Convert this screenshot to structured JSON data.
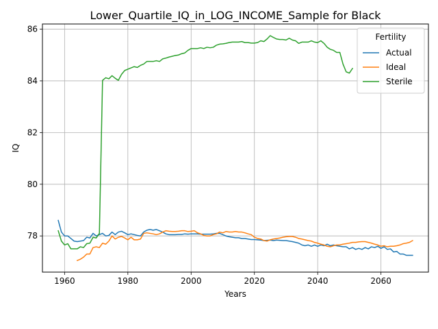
{
  "chart_data": {
    "type": "line",
    "title": "Lower_Quartile_IQ_in_LOG_INCOME_Sample for Black",
    "xlabel": "Years",
    "ylabel": "IQ",
    "xlim": [
      1953,
      2075
    ],
    "ylim": [
      76.6,
      86.2
    ],
    "xticks": [
      1960,
      1980,
      2000,
      2020,
      2040,
      2060
    ],
    "yticks": [
      78,
      80,
      82,
      84,
      86
    ],
    "grid": true,
    "legend": {
      "title": "Fertility",
      "placement": "top-right"
    },
    "series": [
      {
        "name": "Actual",
        "color": "#1f77b4",
        "points": [
          [
            1958,
            78.6
          ],
          [
            1959,
            78.15
          ],
          [
            1960,
            78.0
          ],
          [
            1961,
            78.0
          ],
          [
            1962,
            77.9
          ],
          [
            1963,
            77.8
          ],
          [
            1964,
            77.78
          ],
          [
            1965,
            77.8
          ],
          [
            1966,
            77.82
          ],
          [
            1967,
            77.95
          ],
          [
            1968,
            77.92
          ],
          [
            1969,
            78.1
          ],
          [
            1970,
            78.0
          ],
          [
            1971,
            78.05
          ],
          [
            1972,
            78.1
          ],
          [
            1973,
            78.0
          ],
          [
            1974,
            78.02
          ],
          [
            1975,
            78.15
          ],
          [
            1976,
            78.05
          ],
          [
            1977,
            78.15
          ],
          [
            1978,
            78.18
          ],
          [
            1979,
            78.12
          ],
          [
            1980,
            78.05
          ],
          [
            1981,
            78.08
          ],
          [
            1982,
            78.05
          ],
          [
            1983,
            78.02
          ],
          [
            1984,
            78.0
          ],
          [
            1985,
            78.15
          ],
          [
            1986,
            78.22
          ],
          [
            1987,
            78.25
          ],
          [
            1988,
            78.22
          ],
          [
            1989,
            78.25
          ],
          [
            1990,
            78.2
          ],
          [
            1991,
            78.15
          ],
          [
            1992,
            78.08
          ],
          [
            1993,
            78.05
          ],
          [
            1994,
            78.05
          ],
          [
            1995,
            78.05
          ],
          [
            1996,
            78.06
          ],
          [
            1997,
            78.06
          ],
          [
            1998,
            78.08
          ],
          [
            1999,
            78.07
          ],
          [
            2000,
            78.08
          ],
          [
            2001,
            78.08
          ],
          [
            2002,
            78.08
          ],
          [
            2003,
            78.07
          ],
          [
            2004,
            78.07
          ],
          [
            2005,
            78.07
          ],
          [
            2006,
            78.07
          ],
          [
            2007,
            78.08
          ],
          [
            2008,
            78.1
          ],
          [
            2009,
            78.1
          ],
          [
            2010,
            78.05
          ],
          [
            2011,
            78.0
          ],
          [
            2012,
            77.97
          ],
          [
            2013,
            77.95
          ],
          [
            2014,
            77.93
          ],
          [
            2015,
            77.93
          ],
          [
            2016,
            77.9
          ],
          [
            2017,
            77.9
          ],
          [
            2018,
            77.88
          ],
          [
            2019,
            77.86
          ],
          [
            2020,
            77.86
          ],
          [
            2021,
            77.85
          ],
          [
            2022,
            77.84
          ],
          [
            2023,
            77.82
          ],
          [
            2024,
            77.83
          ],
          [
            2025,
            77.84
          ],
          [
            2026,
            77.82
          ],
          [
            2027,
            77.84
          ],
          [
            2028,
            77.83
          ],
          [
            2029,
            77.82
          ],
          [
            2030,
            77.82
          ],
          [
            2031,
            77.8
          ],
          [
            2032,
            77.78
          ],
          [
            2033,
            77.75
          ],
          [
            2034,
            77.72
          ],
          [
            2035,
            77.65
          ],
          [
            2036,
            77.62
          ],
          [
            2037,
            77.65
          ],
          [
            2038,
            77.6
          ],
          [
            2039,
            77.65
          ],
          [
            2040,
            77.6
          ],
          [
            2041,
            77.65
          ],
          [
            2042,
            77.62
          ],
          [
            2043,
            77.68
          ],
          [
            2044,
            77.62
          ],
          [
            2045,
            77.65
          ],
          [
            2046,
            77.62
          ],
          [
            2047,
            77.6
          ],
          [
            2048,
            77.58
          ],
          [
            2049,
            77.58
          ],
          [
            2050,
            77.5
          ],
          [
            2051,
            77.55
          ],
          [
            2052,
            77.48
          ],
          [
            2053,
            77.52
          ],
          [
            2054,
            77.48
          ],
          [
            2055,
            77.55
          ],
          [
            2056,
            77.5
          ],
          [
            2057,
            77.58
          ],
          [
            2058,
            77.55
          ],
          [
            2059,
            77.6
          ],
          [
            2060,
            77.52
          ],
          [
            2061,
            77.58
          ],
          [
            2062,
            77.48
          ],
          [
            2063,
            77.5
          ],
          [
            2064,
            77.38
          ],
          [
            2065,
            77.4
          ],
          [
            2066,
            77.3
          ],
          [
            2067,
            77.3
          ],
          [
            2068,
            77.25
          ],
          [
            2069,
            77.25
          ],
          [
            2070,
            77.25
          ]
        ]
      },
      {
        "name": "Ideal",
        "color": "#ff7f0e",
        "points": [
          [
            1964,
            77.05
          ],
          [
            1965,
            77.1
          ],
          [
            1966,
            77.18
          ],
          [
            1967,
            77.3
          ],
          [
            1968,
            77.3
          ],
          [
            1969,
            77.55
          ],
          [
            1970,
            77.58
          ],
          [
            1971,
            77.55
          ],
          [
            1972,
            77.72
          ],
          [
            1973,
            77.68
          ],
          [
            1974,
            77.8
          ],
          [
            1975,
            78.0
          ],
          [
            1976,
            77.88
          ],
          [
            1977,
            77.95
          ],
          [
            1978,
            77.98
          ],
          [
            1979,
            77.92
          ],
          [
            1980,
            77.85
          ],
          [
            1981,
            77.95
          ],
          [
            1982,
            77.85
          ],
          [
            1983,
            77.85
          ],
          [
            1984,
            77.88
          ],
          [
            1985,
            78.1
          ],
          [
            1986,
            78.12
          ],
          [
            1987,
            78.1
          ],
          [
            1988,
            78.08
          ],
          [
            1989,
            78.05
          ],
          [
            1990,
            78.08
          ],
          [
            1991,
            78.15
          ],
          [
            1992,
            78.2
          ],
          [
            1993,
            78.18
          ],
          [
            1994,
            78.17
          ],
          [
            1995,
            78.17
          ],
          [
            1996,
            78.18
          ],
          [
            1997,
            78.2
          ],
          [
            1998,
            78.2
          ],
          [
            1999,
            78.17
          ],
          [
            2000,
            78.18
          ],
          [
            2001,
            78.2
          ],
          [
            2002,
            78.12
          ],
          [
            2003,
            78.08
          ],
          [
            2004,
            78.02
          ],
          [
            2005,
            78.0
          ],
          [
            2006,
            78.0
          ],
          [
            2007,
            78.05
          ],
          [
            2008,
            78.08
          ],
          [
            2009,
            78.15
          ],
          [
            2010,
            78.12
          ],
          [
            2011,
            78.17
          ],
          [
            2012,
            78.15
          ],
          [
            2013,
            78.15
          ],
          [
            2014,
            78.17
          ],
          [
            2015,
            78.15
          ],
          [
            2016,
            78.15
          ],
          [
            2017,
            78.12
          ],
          [
            2018,
            78.08
          ],
          [
            2019,
            78.05
          ],
          [
            2020,
            77.95
          ],
          [
            2021,
            77.9
          ],
          [
            2022,
            77.88
          ],
          [
            2023,
            77.82
          ],
          [
            2024,
            77.8
          ],
          [
            2025,
            77.85
          ],
          [
            2026,
            77.88
          ],
          [
            2027,
            77.9
          ],
          [
            2028,
            77.92
          ],
          [
            2029,
            77.95
          ],
          [
            2030,
            77.97
          ],
          [
            2031,
            77.98
          ],
          [
            2032,
            77.98
          ],
          [
            2033,
            77.95
          ],
          [
            2034,
            77.9
          ],
          [
            2035,
            77.88
          ],
          [
            2036,
            77.85
          ],
          [
            2037,
            77.82
          ],
          [
            2038,
            77.8
          ],
          [
            2039,
            77.75
          ],
          [
            2040,
            77.72
          ],
          [
            2041,
            77.68
          ],
          [
            2042,
            77.65
          ],
          [
            2043,
            77.6
          ],
          [
            2044,
            77.58
          ],
          [
            2045,
            77.62
          ],
          [
            2046,
            77.65
          ],
          [
            2047,
            77.65
          ],
          [
            2048,
            77.68
          ],
          [
            2049,
            77.7
          ],
          [
            2050,
            77.72
          ],
          [
            2051,
            77.75
          ],
          [
            2052,
            77.75
          ],
          [
            2053,
            77.77
          ],
          [
            2054,
            77.78
          ],
          [
            2055,
            77.78
          ],
          [
            2056,
            77.75
          ],
          [
            2057,
            77.72
          ],
          [
            2058,
            77.68
          ],
          [
            2059,
            77.65
          ],
          [
            2060,
            77.6
          ],
          [
            2061,
            77.62
          ],
          [
            2062,
            77.58
          ],
          [
            2063,
            77.6
          ],
          [
            2064,
            77.6
          ],
          [
            2065,
            77.62
          ],
          [
            2066,
            77.65
          ],
          [
            2067,
            77.7
          ],
          [
            2068,
            77.72
          ],
          [
            2069,
            77.75
          ],
          [
            2070,
            77.82
          ]
        ]
      },
      {
        "name": "Sterile",
        "color": "#2ca02c",
        "points": [
          [
            1958,
            78.2
          ],
          [
            1959,
            77.8
          ],
          [
            1960,
            77.65
          ],
          [
            1961,
            77.7
          ],
          [
            1962,
            77.5
          ],
          [
            1963,
            77.5
          ],
          [
            1964,
            77.5
          ],
          [
            1965,
            77.58
          ],
          [
            1966,
            77.55
          ],
          [
            1967,
            77.7
          ],
          [
            1968,
            77.72
          ],
          [
            1969,
            77.95
          ],
          [
            1970,
            77.92
          ],
          [
            1971,
            78.1
          ],
          [
            1972,
            84.02
          ],
          [
            1973,
            84.12
          ],
          [
            1974,
            84.08
          ],
          [
            1975,
            84.2
          ],
          [
            1976,
            84.1
          ],
          [
            1977,
            84.02
          ],
          [
            1978,
            84.25
          ],
          [
            1979,
            84.4
          ],
          [
            1980,
            84.45
          ],
          [
            1981,
            84.5
          ],
          [
            1982,
            84.55
          ],
          [
            1983,
            84.52
          ],
          [
            1984,
            84.6
          ],
          [
            1985,
            84.65
          ],
          [
            1986,
            84.75
          ],
          [
            1987,
            84.75
          ],
          [
            1988,
            84.75
          ],
          [
            1989,
            84.78
          ],
          [
            1990,
            84.75
          ],
          [
            1991,
            84.85
          ],
          [
            1992,
            84.88
          ],
          [
            1993,
            84.92
          ],
          [
            1994,
            84.95
          ],
          [
            1995,
            84.98
          ],
          [
            1996,
            85.0
          ],
          [
            1997,
            85.05
          ],
          [
            1998,
            85.08
          ],
          [
            1999,
            85.18
          ],
          [
            2000,
            85.25
          ],
          [
            2001,
            85.25
          ],
          [
            2002,
            85.25
          ],
          [
            2003,
            85.28
          ],
          [
            2004,
            85.25
          ],
          [
            2005,
            85.3
          ],
          [
            2006,
            85.28
          ],
          [
            2007,
            85.3
          ],
          [
            2008,
            85.38
          ],
          [
            2009,
            85.42
          ],
          [
            2010,
            85.43
          ],
          [
            2011,
            85.45
          ],
          [
            2012,
            85.48
          ],
          [
            2013,
            85.5
          ],
          [
            2014,
            85.5
          ],
          [
            2015,
            85.5
          ],
          [
            2016,
            85.52
          ],
          [
            2017,
            85.48
          ],
          [
            2018,
            85.48
          ],
          [
            2019,
            85.46
          ],
          [
            2020,
            85.46
          ],
          [
            2021,
            85.48
          ],
          [
            2022,
            85.55
          ],
          [
            2023,
            85.52
          ],
          [
            2024,
            85.62
          ],
          [
            2025,
            85.75
          ],
          [
            2026,
            85.68
          ],
          [
            2027,
            85.62
          ],
          [
            2028,
            85.6
          ],
          [
            2029,
            85.6
          ],
          [
            2030,
            85.58
          ],
          [
            2031,
            85.65
          ],
          [
            2032,
            85.58
          ],
          [
            2033,
            85.55
          ],
          [
            2034,
            85.45
          ],
          [
            2035,
            85.5
          ],
          [
            2036,
            85.5
          ],
          [
            2037,
            85.5
          ],
          [
            2038,
            85.55
          ],
          [
            2039,
            85.5
          ],
          [
            2040,
            85.48
          ],
          [
            2041,
            85.55
          ],
          [
            2042,
            85.45
          ],
          [
            2043,
            85.3
          ],
          [
            2044,
            85.22
          ],
          [
            2045,
            85.18
          ],
          [
            2046,
            85.1
          ],
          [
            2047,
            85.1
          ],
          [
            2048,
            84.65
          ],
          [
            2049,
            84.35
          ],
          [
            2050,
            84.3
          ],
          [
            2051,
            84.48
          ]
        ]
      }
    ]
  }
}
